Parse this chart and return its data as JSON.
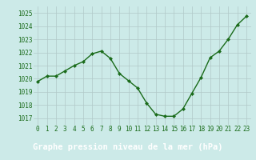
{
  "x": [
    0,
    1,
    2,
    3,
    4,
    5,
    6,
    7,
    8,
    9,
    10,
    11,
    12,
    13,
    14,
    15,
    16,
    17,
    18,
    19,
    20,
    21,
    22,
    23
  ],
  "y": [
    1019.8,
    1020.2,
    1020.2,
    1020.6,
    1021.0,
    1021.3,
    1021.9,
    1022.1,
    1021.55,
    1020.4,
    1019.85,
    1019.3,
    1018.15,
    1017.3,
    1017.15,
    1017.15,
    1017.7,
    1018.9,
    1020.1,
    1021.6,
    1022.1,
    1023.0,
    1024.1,
    1024.75
  ],
  "ylim": [
    1016.5,
    1025.5
  ],
  "yticks": [
    1017,
    1018,
    1019,
    1020,
    1021,
    1022,
    1023,
    1024,
    1025
  ],
  "xticks": [
    0,
    1,
    2,
    3,
    4,
    5,
    6,
    7,
    8,
    9,
    10,
    11,
    12,
    13,
    14,
    15,
    16,
    17,
    18,
    19,
    20,
    21,
    22,
    23
  ],
  "xlabel": "Graphe pression niveau de la mer (hPa)",
  "line_color": "#1a6b1a",
  "marker": "D",
  "marker_size": 2.0,
  "line_width": 1.0,
  "bg_color": "#cceae8",
  "grid_color": "#b0c8c8",
  "xlabel_color": "#1a6b1a",
  "tick_label_color": "#1a6b1a",
  "xlabel_fontsize": 7.5,
  "tick_fontsize": 5.5,
  "bottom_bar_color": "#3a7a3a",
  "bottom_bar_height": 0.18
}
